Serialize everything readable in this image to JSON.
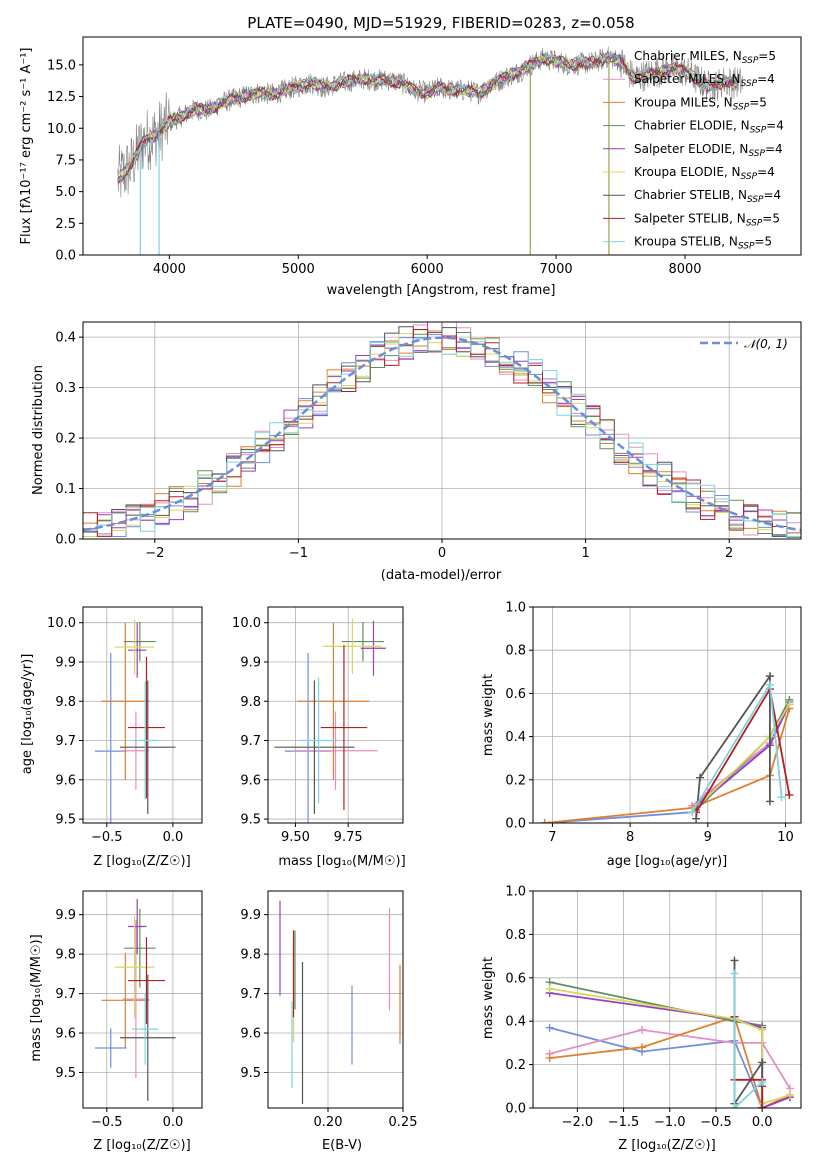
{
  "colors": {
    "chabrier_miles": "#6f8fdf",
    "salpeter_miles": "#e58fc3",
    "kroupa_miles": "#e07f30",
    "chabrier_elodie": "#5f8f5f",
    "salpeter_elodie": "#9b3fc0",
    "kroupa_elodie": "#d7d75f",
    "chabrier_stelib": "#555555",
    "salpeter_stelib": "#b22020",
    "kroupa_stelib": "#7fd3e0",
    "spectrum": "#808080",
    "gaussian": "#6a8fd6"
  },
  "legend_spectrum": [
    {
      "key": "chabrier_miles",
      "label": "Chabrier MILES, N",
      "sub": "SSP",
      "suffix": "=5"
    },
    {
      "key": "salpeter_miles",
      "label": "Salpeter MILES, N",
      "sub": "SSP",
      "suffix": "=4"
    },
    {
      "key": "kroupa_miles",
      "label": "Kroupa MILES, N",
      "sub": "SSP",
      "suffix": "=5"
    },
    {
      "key": "chabrier_elodie",
      "label": "Chabrier ELODIE, N",
      "sub": "SSP",
      "suffix": "=4"
    },
    {
      "key": "salpeter_elodie",
      "label": "Salpeter ELODIE, N",
      "sub": "SSP",
      "suffix": "=4"
    },
    {
      "key": "kroupa_elodie",
      "label": "Kroupa ELODIE, N",
      "sub": "SSP",
      "suffix": "=4"
    },
    {
      "key": "chabrier_stelib",
      "label": "Chabrier STELIB, N",
      "sub": "SSP",
      "suffix": "=4"
    },
    {
      "key": "salpeter_stelib",
      "label": "Salpeter STELIB, N",
      "sub": "SSP",
      "suffix": "=5"
    },
    {
      "key": "kroupa_stelib",
      "label": "Kroupa STELIB, N",
      "sub": "SSP",
      "suffix": "=5"
    }
  ],
  "chart_data": [
    {
      "id": "spectrum",
      "type": "line",
      "title": "PLATE=0490, MJD=51929, FIBERID=0283, z=0.058",
      "xlabel": "wavelength [Angstrom, rest frame]",
      "ylabel": "Flux [fλ10⁻¹⁷ erg cm⁻² s⁻¹ A⁻¹]",
      "xlim": [
        3330,
        8900
      ],
      "ylim": [
        0,
        17.2
      ],
      "xticks": [
        4000,
        5000,
        6000,
        7000,
        8000
      ],
      "yticks": [
        0.0,
        2.5,
        5.0,
        7.5,
        10.0,
        12.5,
        15.0
      ],
      "continuum": [
        [
          3600,
          6.0
        ],
        [
          3700,
          7.0
        ],
        [
          3800,
          9.0
        ],
        [
          3900,
          9.5
        ],
        [
          4000,
          10.5
        ],
        [
          4100,
          11.0
        ],
        [
          4200,
          11.5
        ],
        [
          4300,
          11.4
        ],
        [
          4400,
          12.0
        ],
        [
          4500,
          12.3
        ],
        [
          4600,
          12.6
        ],
        [
          4700,
          12.8
        ],
        [
          4800,
          12.7
        ],
        [
          4900,
          13.0
        ],
        [
          5000,
          13.3
        ],
        [
          5100,
          13.6
        ],
        [
          5200,
          13.2
        ],
        [
          5300,
          13.5
        ],
        [
          5400,
          13.7
        ],
        [
          5500,
          13.9
        ],
        [
          5600,
          13.8
        ],
        [
          5700,
          13.8
        ],
        [
          5800,
          13.6
        ],
        [
          5900,
          13.0
        ],
        [
          6000,
          12.8
        ],
        [
          6100,
          13.2
        ],
        [
          6200,
          13.0
        ],
        [
          6300,
          13.0
        ],
        [
          6400,
          12.8
        ],
        [
          6500,
          13.4
        ],
        [
          6600,
          14.0
        ],
        [
          6700,
          14.4
        ],
        [
          6800,
          15.0
        ],
        [
          6900,
          15.5
        ],
        [
          7000,
          15.3
        ],
        [
          7100,
          15.0
        ],
        [
          7200,
          15.1
        ],
        [
          7300,
          15.2
        ],
        [
          7400,
          15.6
        ],
        [
          7500,
          15.3
        ],
        [
          7600,
          14.0
        ],
        [
          7700,
          14.2
        ],
        [
          7800,
          14.5
        ],
        [
          7900,
          14.7
        ],
        [
          8000,
          14.5
        ],
        [
          8100,
          13.8
        ],
        [
          8200,
          13.2
        ],
        [
          8300,
          13.7
        ],
        [
          8400,
          13.6
        ]
      ],
      "dips": [
        3775,
        3920,
        6800,
        7410
      ],
      "legend_position": "upper right"
    },
    {
      "id": "residuals",
      "type": "histogram",
      "xlabel": "(data-model)/error",
      "ylabel": "Normed distribution",
      "xlim": [
        -2.5,
        2.5
      ],
      "ylim": [
        0,
        0.43
      ],
      "xticks": [
        -2,
        -1,
        0,
        1,
        2
      ],
      "yticks": [
        0.0,
        0.1,
        0.2,
        0.3,
        0.4
      ],
      "legend": "𝒩(0, 1)",
      "legend_position": "upper right",
      "reference_curve": "gaussian",
      "bin_edges_start": -2.5,
      "bin_width": 0.1
    },
    {
      "id": "z_vs_age",
      "type": "errorbar",
      "xlabel": "Z [log₁₀(Z/Z☉)]",
      "ylabel": "age  [log₁₀(age/yr)]",
      "xlim": [
        -0.68,
        0.22
      ],
      "ylim": [
        9.49,
        10.04
      ],
      "xticks": [
        -0.5,
        0.0
      ],
      "yticks": [
        9.5,
        9.6,
        9.7,
        9.8,
        9.9,
        10.0
      ],
      "points": [
        {
          "key": "chabrier_miles",
          "x": -0.47,
          "y": 9.673,
          "xerr": 0.12,
          "yerr": 0.25
        },
        {
          "key": "salpeter_miles",
          "x": -0.28,
          "y": 9.674,
          "xerr": 0.1,
          "yerr": 0.1
        },
        {
          "key": "kroupa_miles",
          "x": -0.36,
          "y": 9.8,
          "xerr": 0.18,
          "yerr": 0.2
        },
        {
          "key": "chabrier_elodie",
          "x": -0.25,
          "y": 9.952,
          "xerr": 0.12,
          "yerr": 0.05
        },
        {
          "key": "salpeter_elodie",
          "x": -0.27,
          "y": 9.93,
          "xerr": 0.07,
          "yerr": 0.07
        },
        {
          "key": "kroupa_elodie",
          "x": -0.29,
          "y": 9.938,
          "xerr": 0.15,
          "yerr": 0.07
        },
        {
          "key": "chabrier_stelib",
          "x": -0.19,
          "y": 9.683,
          "xerr": 0.21,
          "yerr": 0.17
        },
        {
          "key": "salpeter_stelib",
          "x": -0.2,
          "y": 9.733,
          "xerr": 0.14,
          "yerr": 0.18
        },
        {
          "key": "kroupa_stelib",
          "x": -0.21,
          "y": 9.7,
          "xerr": 0.1,
          "yerr": 0.15
        }
      ]
    },
    {
      "id": "mass_vs_age",
      "type": "errorbar",
      "xlabel": "mass [log₁₀(M/M☉)]",
      "ylabel": "",
      "xlim": [
        9.37,
        10.01
      ],
      "ylim": [
        9.49,
        10.04
      ],
      "xticks": [
        9.5,
        9.75
      ],
      "yticks": [
        9.5,
        9.6,
        9.7,
        9.8,
        9.9,
        10.0
      ],
      "points": [
        {
          "key": "chabrier_miles",
          "x": 9.56,
          "y": 9.673,
          "xerr": 0.11,
          "yerr": 0.25
        },
        {
          "key": "salpeter_miles",
          "x": 9.69,
          "y": 9.674,
          "xerr": 0.2,
          "yerr": 0.1
        },
        {
          "key": "kroupa_miles",
          "x": 9.68,
          "y": 9.8,
          "xerr": 0.17,
          "yerr": 0.2
        },
        {
          "key": "chabrier_elodie",
          "x": 9.82,
          "y": 9.952,
          "xerr": 0.1,
          "yerr": 0.05
        },
        {
          "key": "salpeter_elodie",
          "x": 9.87,
          "y": 9.935,
          "xerr": 0.06,
          "yerr": 0.07
        },
        {
          "key": "kroupa_elodie",
          "x": 9.77,
          "y": 9.94,
          "xerr": 0.14,
          "yerr": 0.07
        },
        {
          "key": "chabrier_stelib",
          "x": 9.59,
          "y": 9.683,
          "xerr": 0.19,
          "yerr": 0.17
        },
        {
          "key": "salpeter_stelib",
          "x": 9.73,
          "y": 9.733,
          "xerr": 0.11,
          "yerr": 0.21
        },
        {
          "key": "kroupa_stelib",
          "x": 9.61,
          "y": 9.7,
          "xerr": 0.09,
          "yerr": 0.16
        }
      ]
    },
    {
      "id": "age_vs_weight",
      "type": "line",
      "xlabel": "age  [log₁₀(age/yr)]",
      "ylabel": "mass weight",
      "xlim": [
        6.75,
        10.2
      ],
      "ylim": [
        0,
        1.0
      ],
      "xticks": [
        7,
        8,
        9,
        10
      ],
      "yticks": [
        0.0,
        0.2,
        0.4,
        0.6,
        0.8,
        1.0
      ],
      "series": [
        {
          "key": "chabrier_miles",
          "points": [
            [
              6.9,
              0.0
            ],
            [
              8.8,
              0.05
            ],
            [
              8.95,
              0.12
            ],
            [
              9.8,
              0.37
            ],
            [
              10.05,
              0.56
            ]
          ]
        },
        {
          "key": "salpeter_miles",
          "points": [
            [
              8.8,
              0.08
            ],
            [
              9.0,
              0.14
            ],
            [
              9.55,
              0.3
            ],
            [
              9.8,
              0.37
            ]
          ]
        },
        {
          "key": "kroupa_miles",
          "points": [
            [
              6.9,
              0.0
            ],
            [
              8.8,
              0.07
            ],
            [
              9.8,
              0.22
            ],
            [
              10.05,
              0.53
            ]
          ]
        },
        {
          "key": "chabrier_elodie",
          "points": [
            [
              8.85,
              0.06
            ],
            [
              9.8,
              0.4
            ],
            [
              10.05,
              0.57
            ]
          ]
        },
        {
          "key": "salpeter_elodie",
          "points": [
            [
              8.9,
              0.09
            ],
            [
              9.8,
              0.36
            ],
            [
              10.05,
              0.55
            ]
          ]
        },
        {
          "key": "kroupa_elodie",
          "points": [
            [
              8.85,
              0.07
            ],
            [
              9.8,
              0.4
            ],
            [
              10.05,
              0.55
            ]
          ]
        },
        {
          "key": "chabrier_stelib",
          "points": [
            [
              8.85,
              0.02
            ],
            [
              8.9,
              0.21
            ],
            [
              9.8,
              0.68
            ],
            [
              9.8,
              0.1
            ]
          ]
        },
        {
          "key": "salpeter_stelib",
          "points": [
            [
              8.85,
              0.05
            ],
            [
              9.8,
              0.62
            ],
            [
              10.05,
              0.13
            ]
          ]
        },
        {
          "key": "kroupa_stelib",
          "points": [
            [
              8.8,
              0.05
            ],
            [
              9.8,
              0.64
            ],
            [
              9.95,
              0.12
            ]
          ]
        }
      ]
    },
    {
      "id": "z_vs_mass",
      "type": "errorbar",
      "xlabel": "Z [log₁₀(Z/Z☉)]",
      "ylabel": "mass [log₁₀(M/M☉)]",
      "xlim": [
        -0.68,
        0.22
      ],
      "ylim": [
        9.41,
        9.96
      ],
      "xticks": [
        -0.5,
        0.0
      ],
      "yticks": [
        9.5,
        9.6,
        9.7,
        9.8,
        9.9
      ],
      "points": [
        {
          "key": "chabrier_miles",
          "x": -0.47,
          "y": 9.562,
          "xerr": 0.12,
          "yerr": 0.05
        },
        {
          "key": "salpeter_miles",
          "x": -0.28,
          "y": 9.686,
          "xerr": 0.1,
          "yerr": 0.2
        },
        {
          "key": "kroupa_miles",
          "x": -0.36,
          "y": 9.683,
          "xerr": 0.18,
          "yerr": 0.12
        },
        {
          "key": "chabrier_elodie",
          "x": -0.25,
          "y": 9.815,
          "xerr": 0.12,
          "yerr": 0.1
        },
        {
          "key": "salpeter_elodie",
          "x": -0.27,
          "y": 9.87,
          "xerr": 0.07,
          "yerr": 0.07
        },
        {
          "key": "kroupa_elodie",
          "x": -0.29,
          "y": 9.767,
          "xerr": 0.15,
          "yerr": 0.13
        },
        {
          "key": "chabrier_stelib",
          "x": -0.19,
          "y": 9.588,
          "xerr": 0.21,
          "yerr": 0.16
        },
        {
          "key": "salpeter_stelib",
          "x": -0.2,
          "y": 9.733,
          "xerr": 0.14,
          "yerr": 0.11
        },
        {
          "key": "kroupa_stelib",
          "x": -0.21,
          "y": 9.61,
          "xerr": 0.1,
          "yerr": 0.09
        }
      ]
    },
    {
      "id": "ebv_vs_mass",
      "type": "errorbar",
      "xlabel": "E(B-V)",
      "ylabel": "",
      "xlim": [
        0.16,
        0.25
      ],
      "ylim": [
        9.41,
        9.96
      ],
      "xticks": [
        0.2,
        0.25
      ],
      "yticks": [
        9.5,
        9.6,
        9.7,
        9.8,
        9.9
      ],
      "points": [
        {
          "key": "chabrier_miles",
          "x": 0.216,
          "y": 9.62,
          "xerr": 0,
          "yerr": 0.1
        },
        {
          "key": "salpeter_miles",
          "x": 0.241,
          "y": 9.787,
          "xerr": 0,
          "yerr": 0.13
        },
        {
          "key": "kroupa_miles",
          "x": 0.248,
          "y": 9.673,
          "xerr": 0,
          "yerr": 0.1
        },
        {
          "key": "chabrier_elodie",
          "x": 0.178,
          "y": 9.76,
          "xerr": 0,
          "yerr": 0.1
        },
        {
          "key": "salpeter_elodie",
          "x": 0.168,
          "y": 9.815,
          "xerr": 0,
          "yerr": 0.12
        },
        {
          "key": "kroupa_elodie",
          "x": 0.177,
          "y": 9.677,
          "xerr": 0,
          "yerr": 0.1
        },
        {
          "key": "chabrier_stelib",
          "x": 0.183,
          "y": 9.6,
          "xerr": 0,
          "yerr": 0.18
        },
        {
          "key": "salpeter_stelib",
          "x": 0.177,
          "y": 9.75,
          "xerr": 0,
          "yerr": 0.11
        },
        {
          "key": "kroupa_stelib",
          "x": 0.176,
          "y": 9.57,
          "xerr": 0,
          "yerr": 0.11
        }
      ]
    },
    {
      "id": "z_vs_weight",
      "type": "line",
      "xlabel": "Z [log₁₀(Z/Z☉)]",
      "ylabel": "mass weight",
      "xlim": [
        -2.48,
        0.42
      ],
      "ylim": [
        0,
        1.0
      ],
      "xticks": [
        -2.0,
        -1.5,
        -1.0,
        -0.5,
        0.0
      ],
      "yticks": [
        0.0,
        0.2,
        0.4,
        0.6,
        0.8,
        1.0
      ],
      "series": [
        {
          "key": "chabrier_miles",
          "points": [
            [
              -2.3,
              0.37
            ],
            [
              -1.3,
              0.26
            ],
            [
              -0.3,
              0.31
            ],
            [
              0.0,
              0.0
            ]
          ]
        },
        {
          "key": "salpeter_miles",
          "points": [
            [
              -2.3,
              0.25
            ],
            [
              -1.3,
              0.36
            ],
            [
              -0.3,
              0.3
            ],
            [
              0.0,
              0.3
            ],
            [
              0.3,
              0.09
            ]
          ]
        },
        {
          "key": "kroupa_miles",
          "points": [
            [
              -2.3,
              0.23
            ],
            [
              -1.3,
              0.28
            ],
            [
              -0.3,
              0.42
            ],
            [
              0.0,
              0.0
            ],
            [
              0.3,
              0.06
            ]
          ]
        },
        {
          "key": "chabrier_elodie",
          "points": [
            [
              -2.3,
              0.58
            ],
            [
              -0.3,
              0.4
            ],
            [
              0.0,
              0.38
            ],
            [
              0.0,
              0.0
            ],
            [
              0.3,
              0.05
            ]
          ]
        },
        {
          "key": "salpeter_elodie",
          "points": [
            [
              -2.3,
              0.53
            ],
            [
              -0.3,
              0.41
            ],
            [
              0.0,
              0.37
            ],
            [
              0.0,
              0.0
            ],
            [
              0.3,
              0.05
            ]
          ]
        },
        {
          "key": "kroupa_elodie",
          "points": [
            [
              -2.3,
              0.55
            ],
            [
              -0.3,
              0.41
            ],
            [
              0.0,
              0.36
            ],
            [
              0.0,
              0.02
            ],
            [
              0.3,
              0.06
            ]
          ]
        },
        {
          "key": "chabrier_stelib",
          "points": [
            [
              -0.3,
              0.68
            ],
            [
              -0.3,
              0.02
            ],
            [
              0.0,
              0.21
            ],
            [
              0.0,
              0.1
            ]
          ]
        },
        {
          "key": "salpeter_stelib",
          "points": [
            [
              -0.3,
              0.42
            ],
            [
              -0.3,
              0.13
            ],
            [
              0.0,
              0.13
            ],
            [
              0.0,
              0.0
            ]
          ]
        },
        {
          "key": "kroupa_stelib",
          "points": [
            [
              -0.3,
              0.62
            ],
            [
              -0.3,
              0.0
            ],
            [
              0.0,
              0.12
            ]
          ]
        }
      ]
    }
  ]
}
